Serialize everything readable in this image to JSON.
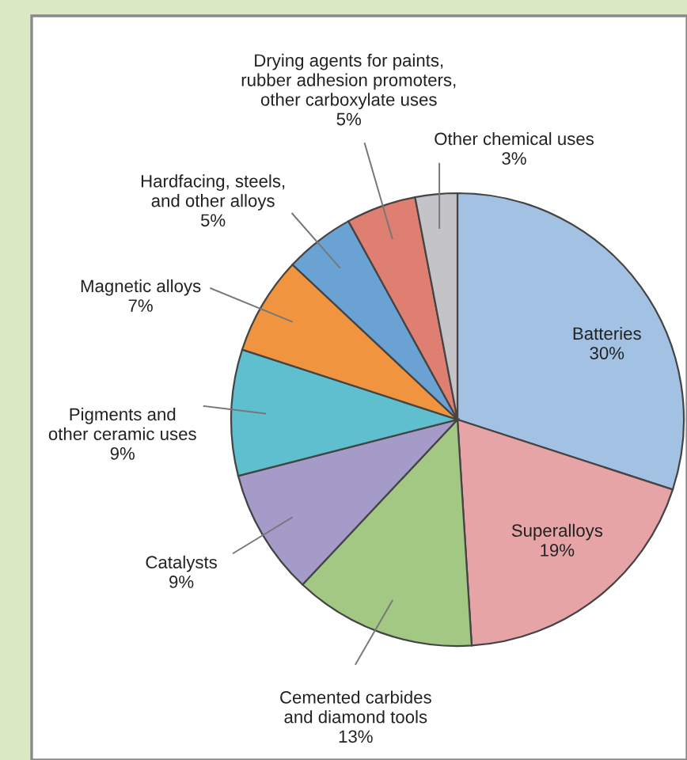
{
  "chart_data": {
    "type": "pie",
    "categories": [
      "Batteries",
      "Superalloys",
      "Cemented carbides\nand diamond tools",
      "Catalysts",
      "Pigments and\nother ceramic uses",
      "Magnetic alloys",
      "Hardfacing, steels,\nand other alloys",
      "Drying agents for paints,\nrubber adhesion promoters,\nother carboxylate uses",
      "Other chemical uses"
    ],
    "values": [
      30,
      19,
      13,
      9,
      9,
      7,
      5,
      5,
      3
    ],
    "value_labels": [
      "30%",
      "19%",
      "13%",
      "9%",
      "9%",
      "7%",
      "5%",
      "5%",
      "3%"
    ],
    "colors": [
      "#a3c2e3",
      "#e6a4a6",
      "#a2c884",
      "#a49bc9",
      "#5fbfcf",
      "#f0943f",
      "#6aa2d4",
      "#de7f72",
      "#c4c4c8"
    ]
  }
}
